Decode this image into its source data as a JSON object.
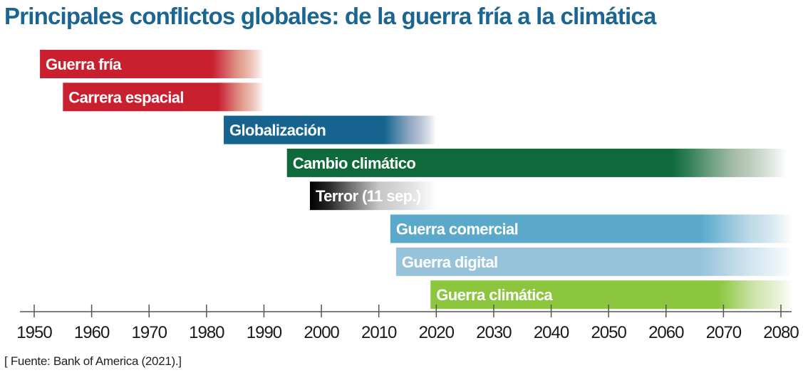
{
  "title": "Principales conflictos globales: de la guerra fría a la climática",
  "source": "[ Fuente: Bank of America (2021).]",
  "chart_data": {
    "type": "gantt",
    "title": "Principales conflictos globales: de la guerra fría a la climática",
    "xlabel": "",
    "ylabel": "",
    "xlim": [
      1950,
      2080
    ],
    "x_ticks": [
      1950,
      1960,
      1970,
      1980,
      1990,
      2000,
      2010,
      2020,
      2030,
      2040,
      2050,
      2060,
      2070,
      2080
    ],
    "grid": false,
    "legend": "none",
    "bars": [
      {
        "label": "Guerra fría",
        "start": 1951,
        "end": 1990,
        "fade_start": 1981,
        "color": "#c8202f",
        "fade_color": "#d9826c"
      },
      {
        "label": "Carrera espacial",
        "start": 1955,
        "end": 1990,
        "fade_start": 1982,
        "color": "#c8202f",
        "fade_color": "#d9826c"
      },
      {
        "label": "Globalización",
        "start": 1983,
        "end": 2020,
        "fade_start": 2011,
        "color": "#17638f",
        "fade_color": "#7f95b7"
      },
      {
        "label": "Cambio climático",
        "start": 1994,
        "end": 2081,
        "fade_start": 2061,
        "color": "#0e6a3a",
        "fade_color": "#8aa88e"
      },
      {
        "label": "Terror (11 sep.)",
        "start": 1998,
        "end": 2020,
        "fade_start": 1998,
        "color": "#000000",
        "fade_color": "#b5b5b5"
      },
      {
        "label": "Guerra comercial",
        "start": 2012,
        "end": 2082,
        "fade_start": 2066,
        "color": "#5aa9cb",
        "fade_color": "#a9cde0"
      },
      {
        "label": "Guerra digital",
        "start": 2013,
        "end": 2082,
        "fade_start": 2066,
        "color": "#96c3da",
        "fade_color": "#c5dde9"
      },
      {
        "label": "Guerra climática",
        "start": 2019,
        "end": 2082,
        "fade_start": 2069,
        "color": "#8cc63f",
        "fade_color": "#c4df9d"
      }
    ]
  }
}
